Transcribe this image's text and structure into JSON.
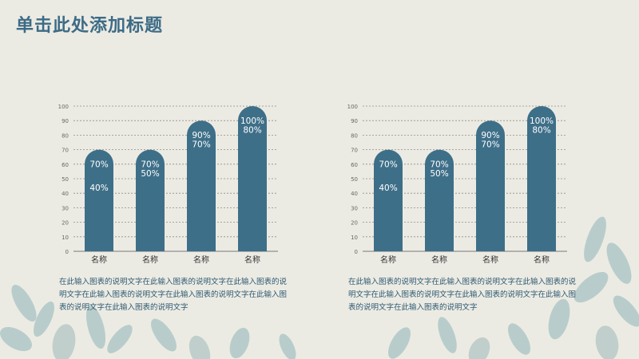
{
  "slide": {
    "title": "单击此处添加标题"
  },
  "colors": {
    "title": "#3c6b86",
    "bar": "#3e6f88",
    "bar_label": "#ffffff",
    "grid": "#8c8c8c",
    "tick": "#666666",
    "background": "#ecebe3",
    "foliage": "#8fb5b8"
  },
  "captions": {
    "left": "在此输入图表的说明文字在此输入图表的说明文字在此输入图表的说明文字在此输入图表的说明文字在此输入图表的说明文字在此输入图表的说明文字在此输入图表的说明文字",
    "right": "在此输入图表的说明文字在此输入图表的说明文字在此输入图表的说明文字在此输入图表的说明文字在此输入图表的说明文字在此输入图表的说明文字在此输入图表的说明文字"
  },
  "chart_data": [
    {
      "type": "bar",
      "categories": [
        "名称",
        "名称",
        "名称",
        "名称"
      ],
      "values": [
        70,
        70,
        90,
        100
      ],
      "data_labels": [
        [
          "70%",
          "40%"
        ],
        [
          "70%",
          "50%"
        ],
        [
          "90%",
          "70%"
        ],
        [
          "100%",
          "80%"
        ]
      ],
      "label_levels": [
        [
          70,
          40
        ],
        [
          70,
          50
        ],
        [
          90,
          70
        ],
        [
          100,
          80
        ]
      ],
      "yticks": [
        0,
        10,
        20,
        30,
        40,
        50,
        60,
        70,
        80,
        90,
        100
      ],
      "ylim": [
        0,
        100
      ],
      "grid": true
    },
    {
      "type": "bar",
      "categories": [
        "名称",
        "名称",
        "名称",
        "名称"
      ],
      "values": [
        70,
        70,
        90,
        100
      ],
      "data_labels": [
        [
          "70%",
          "40%"
        ],
        [
          "70%",
          "50%"
        ],
        [
          "90%",
          "70%"
        ],
        [
          "100%",
          "80%"
        ]
      ],
      "label_levels": [
        [
          70,
          40
        ],
        [
          70,
          50
        ],
        [
          90,
          70
        ],
        [
          100,
          80
        ]
      ],
      "yticks": [
        0,
        10,
        20,
        30,
        40,
        50,
        60,
        70,
        80,
        90,
        100
      ],
      "ylim": [
        0,
        100
      ],
      "grid": true
    }
  ]
}
